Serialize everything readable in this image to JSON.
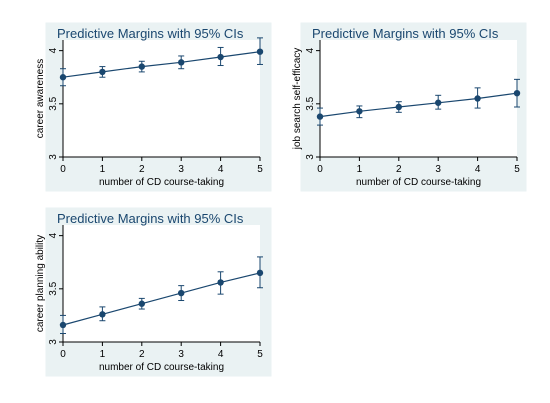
{
  "colors": {
    "series": "#1a476f",
    "frame": "#eaf2f3",
    "plot_bg": "#ffffff"
  },
  "chart_data": [
    {
      "type": "line",
      "title": "Predictive Margins with 95% CIs",
      "xlabel": "number of CD course-taking",
      "ylabel": "career awareness",
      "x": [
        0,
        1,
        2,
        3,
        4,
        5
      ],
      "y": [
        3.75,
        3.8,
        3.85,
        3.89,
        3.94,
        3.99
      ],
      "ci_low": [
        3.67,
        3.75,
        3.8,
        3.83,
        3.86,
        3.87
      ],
      "ci_high": [
        3.83,
        3.85,
        3.9,
        3.95,
        4.03,
        4.12
      ],
      "xlim": [
        0,
        5
      ],
      "ylim": [
        3,
        4.1
      ],
      "xticks": [
        "0",
        "1",
        "2",
        "3",
        "4",
        "5"
      ],
      "yticks": [
        "3",
        "3.5",
        "4"
      ],
      "grid": false
    },
    {
      "type": "line",
      "title": "Predictive Margins with 95% CIs",
      "xlabel": "number of CD course-taking",
      "ylabel": "job search self-efficacy",
      "x": [
        0,
        1,
        2,
        3,
        4,
        5
      ],
      "y": [
        3.38,
        3.43,
        3.47,
        3.51,
        3.55,
        3.6
      ],
      "ci_low": [
        3.3,
        3.37,
        3.42,
        3.45,
        3.46,
        3.47
      ],
      "ci_high": [
        3.46,
        3.48,
        3.52,
        3.58,
        3.65,
        3.73
      ],
      "xlim": [
        0,
        5
      ],
      "ylim": [
        3,
        4.1
      ],
      "xticks": [
        "0",
        "1",
        "2",
        "3",
        "4",
        "5"
      ],
      "yticks": [
        "3",
        "3.5",
        "4"
      ],
      "grid": false
    },
    {
      "type": "line",
      "title": "Predictive Margins with 95% CIs",
      "xlabel": "number of CD course-taking",
      "ylabel": "career planning ability",
      "x": [
        0,
        1,
        2,
        3,
        4,
        5
      ],
      "y": [
        3.16,
        3.26,
        3.36,
        3.46,
        3.56,
        3.65
      ],
      "ci_low": [
        3.08,
        3.2,
        3.31,
        3.39,
        3.45,
        3.51
      ],
      "ci_high": [
        3.25,
        3.33,
        3.41,
        3.53,
        3.66,
        3.8
      ],
      "xlim": [
        0,
        5
      ],
      "ylim": [
        3,
        4.1
      ],
      "xticks": [
        "0",
        "1",
        "2",
        "3",
        "4",
        "5"
      ],
      "yticks": [
        "3",
        "3.5",
        "4"
      ],
      "grid": false
    }
  ]
}
